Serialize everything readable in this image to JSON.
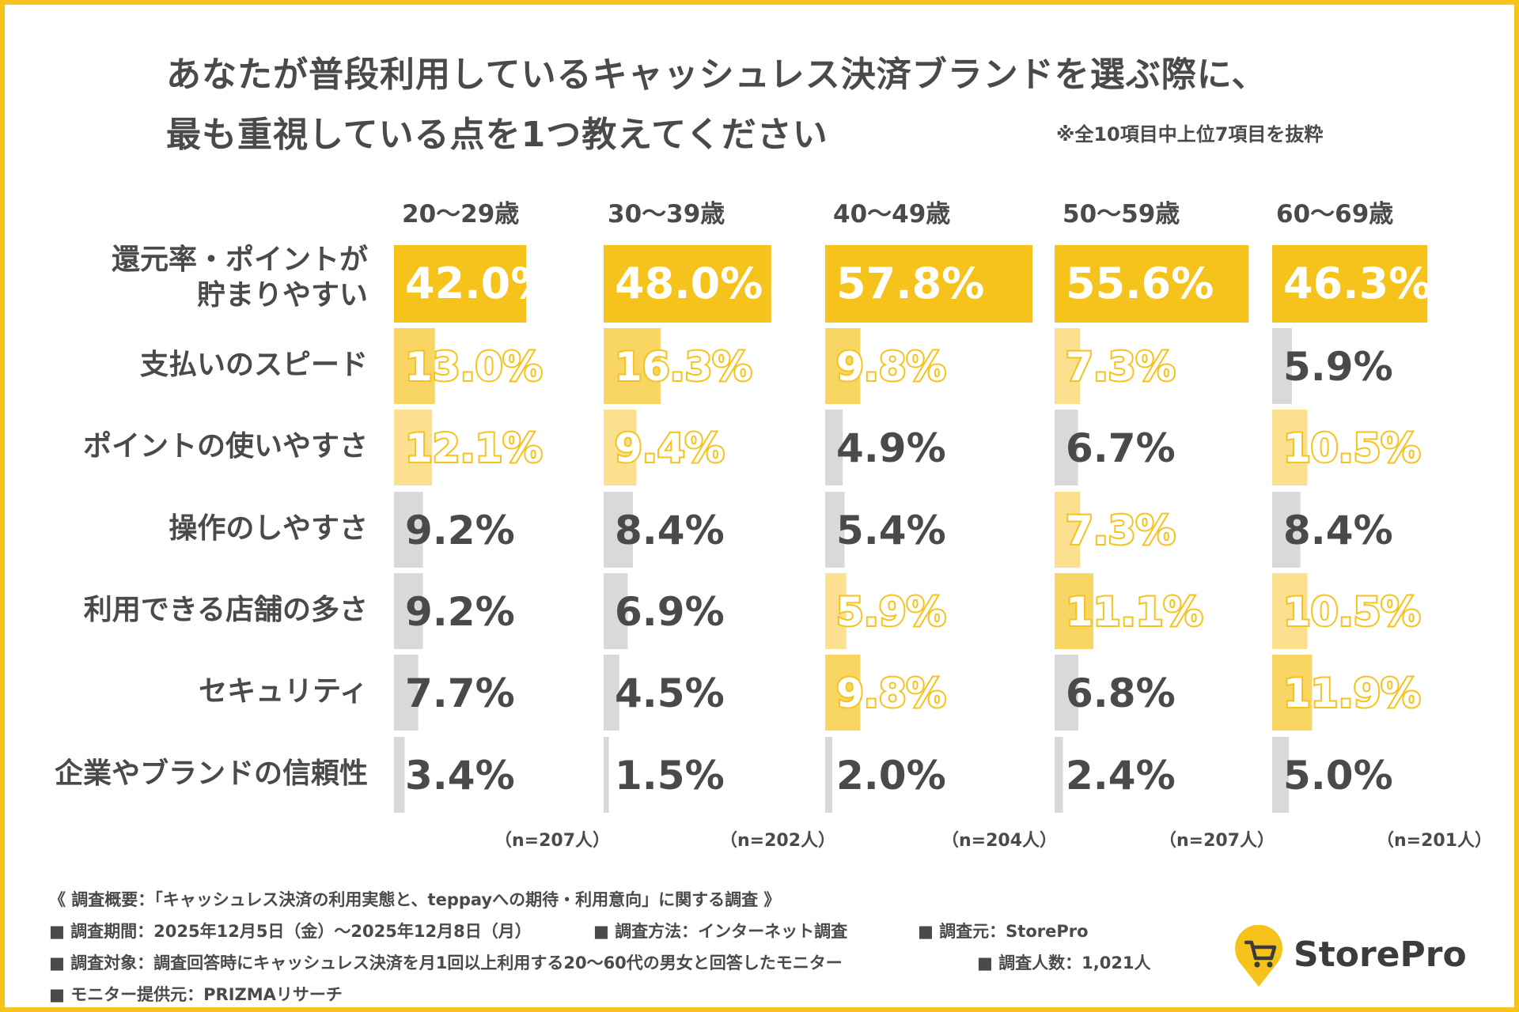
{
  "title_line1": "あなたが普段利用しているキャッシュレス決済ブランドを選ぶ際に、",
  "title_line2": "最も重視している点を1つ教えてください",
  "note": "※全10項目中上位7項目を抜粋",
  "colors": {
    "highlight": "#f6c21c",
    "medium": "#f9d563",
    "light": "#fbe08f",
    "gray": "#d9d9d9",
    "text": "#4a4a4a",
    "frame": "#f6c21c"
  },
  "chart_data": {
    "type": "bar",
    "orientation": "horizontal",
    "unit": "%",
    "categories": [
      "還元率・ポイントが\n貯まりやすい",
      "支払いのスピード",
      "ポイントの使いやすさ",
      "操作のしやすさ",
      "利用できる店舗の多さ",
      "セキュリティ",
      "企業やブランドの信頼性"
    ],
    "category_lines": [
      [
        "還元率・ポイントが",
        "貯まりやすい"
      ],
      [
        "支払いのスピード"
      ],
      [
        "ポイントの使いやすさ"
      ],
      [
        "操作のしやすさ"
      ],
      [
        "利用できる店舗の多さ"
      ],
      [
        "セキュリティ"
      ],
      [
        "企業やブランドの信頼性"
      ]
    ],
    "series": [
      {
        "name": "20〜29歳",
        "n": "（n=207人）",
        "values": [
          42.0,
          13.0,
          12.1,
          9.2,
          9.2,
          7.7,
          3.4
        ],
        "labels": [
          "42.0%",
          "13.0%",
          "12.1%",
          "9.2%",
          "9.2%",
          "7.7%",
          "3.4%"
        ],
        "shades": [
          "highlight",
          "medium",
          "light",
          "gray",
          "gray",
          "gray",
          "gray"
        ]
      },
      {
        "name": "30〜39歳",
        "n": "（n=202人）",
        "values": [
          48.0,
          16.3,
          9.4,
          8.4,
          6.9,
          4.5,
          1.5
        ],
        "labels": [
          "48.0%",
          "16.3%",
          "9.4%",
          "8.4%",
          "6.9%",
          "4.5%",
          "1.5%"
        ],
        "shades": [
          "highlight",
          "medium",
          "light",
          "gray",
          "gray",
          "gray",
          "gray"
        ]
      },
      {
        "name": "40〜49歳",
        "n": "（n=204人）",
        "values": [
          57.8,
          9.8,
          4.9,
          5.4,
          5.9,
          9.8,
          2.0
        ],
        "labels": [
          "57.8%",
          "9.8%",
          "4.9%",
          "5.4%",
          "5.9%",
          "9.8%",
          "2.0%"
        ],
        "shades": [
          "highlight",
          "medium",
          "gray",
          "gray",
          "light",
          "medium",
          "gray"
        ]
      },
      {
        "name": "50〜59歳",
        "n": "（n=207人）",
        "values": [
          55.6,
          7.3,
          6.7,
          7.3,
          11.1,
          6.8,
          2.4
        ],
        "labels": [
          "55.6%",
          "7.3%",
          "6.7%",
          "7.3%",
          "11.1%",
          "6.8%",
          "2.4%"
        ],
        "shades": [
          "highlight",
          "light",
          "gray",
          "light",
          "medium",
          "gray",
          "gray"
        ]
      },
      {
        "name": "60〜69歳",
        "n": "（n=201人）",
        "values": [
          46.3,
          5.9,
          10.5,
          8.4,
          10.5,
          11.9,
          5.0
        ],
        "labels": [
          "46.3%",
          "5.9%",
          "10.5%",
          "8.4%",
          "10.5%",
          "11.9%",
          "5.0%"
        ],
        "shades": [
          "highlight",
          "gray",
          "light",
          "gray",
          "light",
          "medium",
          "gray"
        ]
      }
    ],
    "xlim": [
      0,
      57.8
    ]
  },
  "footer": {
    "line1": "《 調査概要：「キャッシュレス決済の利用実態と、teppayへの期待・利用意向」に関する調査 》",
    "period": "■ 調査期間：2025年12月5日（金）〜2025年12月8日（月）",
    "method": "■ 調査方法：インターネット調査",
    "source": "■ 調査元：StorePro",
    "target": "■ 調査対象：調査回答時にキャッシュレス決済を月1回以上利用する20〜60代の男女と回答したモニター",
    "count": "■ 調査人数：1,021人",
    "provider": "■ モニター提供元：PRIZMAリサーチ"
  },
  "logo": {
    "text": "StorePro",
    "icon": "shopping-cart-pin-icon"
  }
}
